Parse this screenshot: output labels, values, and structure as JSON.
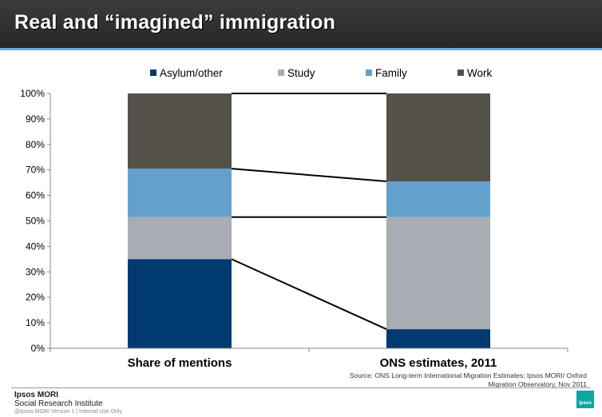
{
  "header": {
    "title": "Real and “imagined” immigration"
  },
  "chart_data": {
    "type": "bar",
    "stacked": true,
    "categories": [
      "Share of mentions",
      "ONS estimates, 2011"
    ],
    "series": [
      {
        "name": "Asylum/other",
        "color": "#003a70",
        "values": [
          35,
          7.5
        ]
      },
      {
        "name": "Study",
        "color": "#a8adb3",
        "values": [
          16.5,
          44
        ]
      },
      {
        "name": "Family",
        "color": "#64a0cc",
        "values": [
          19,
          14
        ]
      },
      {
        "name": "Work",
        "color": "#545149",
        "values": [
          29.5,
          34.5
        ]
      }
    ],
    "ylim": [
      0,
      100
    ],
    "yticks": [
      "0%",
      "10%",
      "20%",
      "30%",
      "40%",
      "50%",
      "60%",
      "70%",
      "80%",
      "90%",
      "100%"
    ],
    "title": "",
    "xlabel": "",
    "ylabel": "",
    "legend": "top",
    "connector_lines": true,
    "grid": false
  },
  "source": "Source: ONS Long-term International Migration Estimates; Ipsos MORI/ Oxford Migration Observatory, Nov 2011",
  "footer": {
    "brand": "Ipsos MORI",
    "subtitle": "Social Research Institute",
    "note": "@Ipsos MORI    Version 1 | Internal Use Only",
    "logo_text": "Ipsos"
  }
}
